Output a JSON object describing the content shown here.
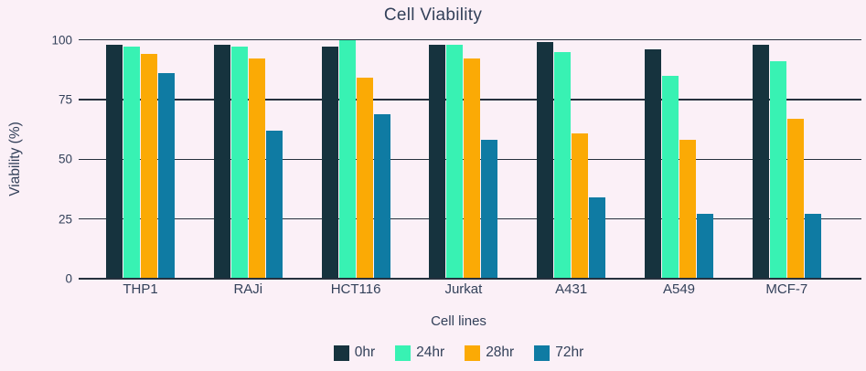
{
  "title": "Cell Viability",
  "chart_data": {
    "type": "bar",
    "title": "Cell Viability",
    "xlabel": "Cell lines",
    "ylabel": "Viability (%)",
    "categories": [
      "THP1",
      "RAJi",
      "HCT116",
      "Jurkat",
      "A431",
      "A549",
      "MCF-7"
    ],
    "series": [
      {
        "name": "0hr",
        "color": "#16333e",
        "values": [
          98,
          98,
          97,
          98,
          99,
          96,
          98
        ]
      },
      {
        "name": "24hr",
        "color": "#38f2b3",
        "values": [
          97,
          97,
          100,
          98,
          95,
          85,
          91
        ]
      },
      {
        "name": "28hr",
        "color": "#fbaa05",
        "values": [
          94,
          92,
          84,
          92,
          61,
          58,
          67
        ]
      },
      {
        "name": "72hr",
        "color": "#0f7ba3",
        "values": [
          86,
          62,
          69,
          58,
          34,
          27,
          27
        ]
      }
    ],
    "ylim": [
      0,
      100
    ],
    "yticks": [
      0,
      25,
      50,
      75,
      100
    ],
    "grid": true,
    "legend_position": "bottom"
  },
  "style": {
    "background": "#fbf0f7",
    "grid_color": "#25303d",
    "text_color": "#33415a"
  }
}
